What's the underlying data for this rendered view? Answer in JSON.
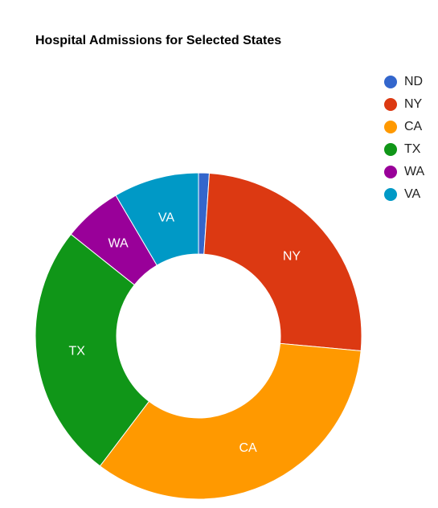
{
  "chart_data": {
    "type": "pie",
    "style": "donut",
    "title": "Hospital Admissions for Selected States",
    "legend_position": "right",
    "slices": [
      {
        "label": "ND",
        "value": 1.0,
        "color": "#3366cc"
      },
      {
        "label": "NY",
        "value": 24.0,
        "color": "#dc3912"
      },
      {
        "label": "CA",
        "value": 32.0,
        "color": "#ff9900"
      },
      {
        "label": "TX",
        "value": 24.0,
        "color": "#109618"
      },
      {
        "label": "WA",
        "value": 5.5,
        "color": "#990099"
      },
      {
        "label": "VA",
        "value": 8.0,
        "color": "#0099c6"
      }
    ]
  }
}
